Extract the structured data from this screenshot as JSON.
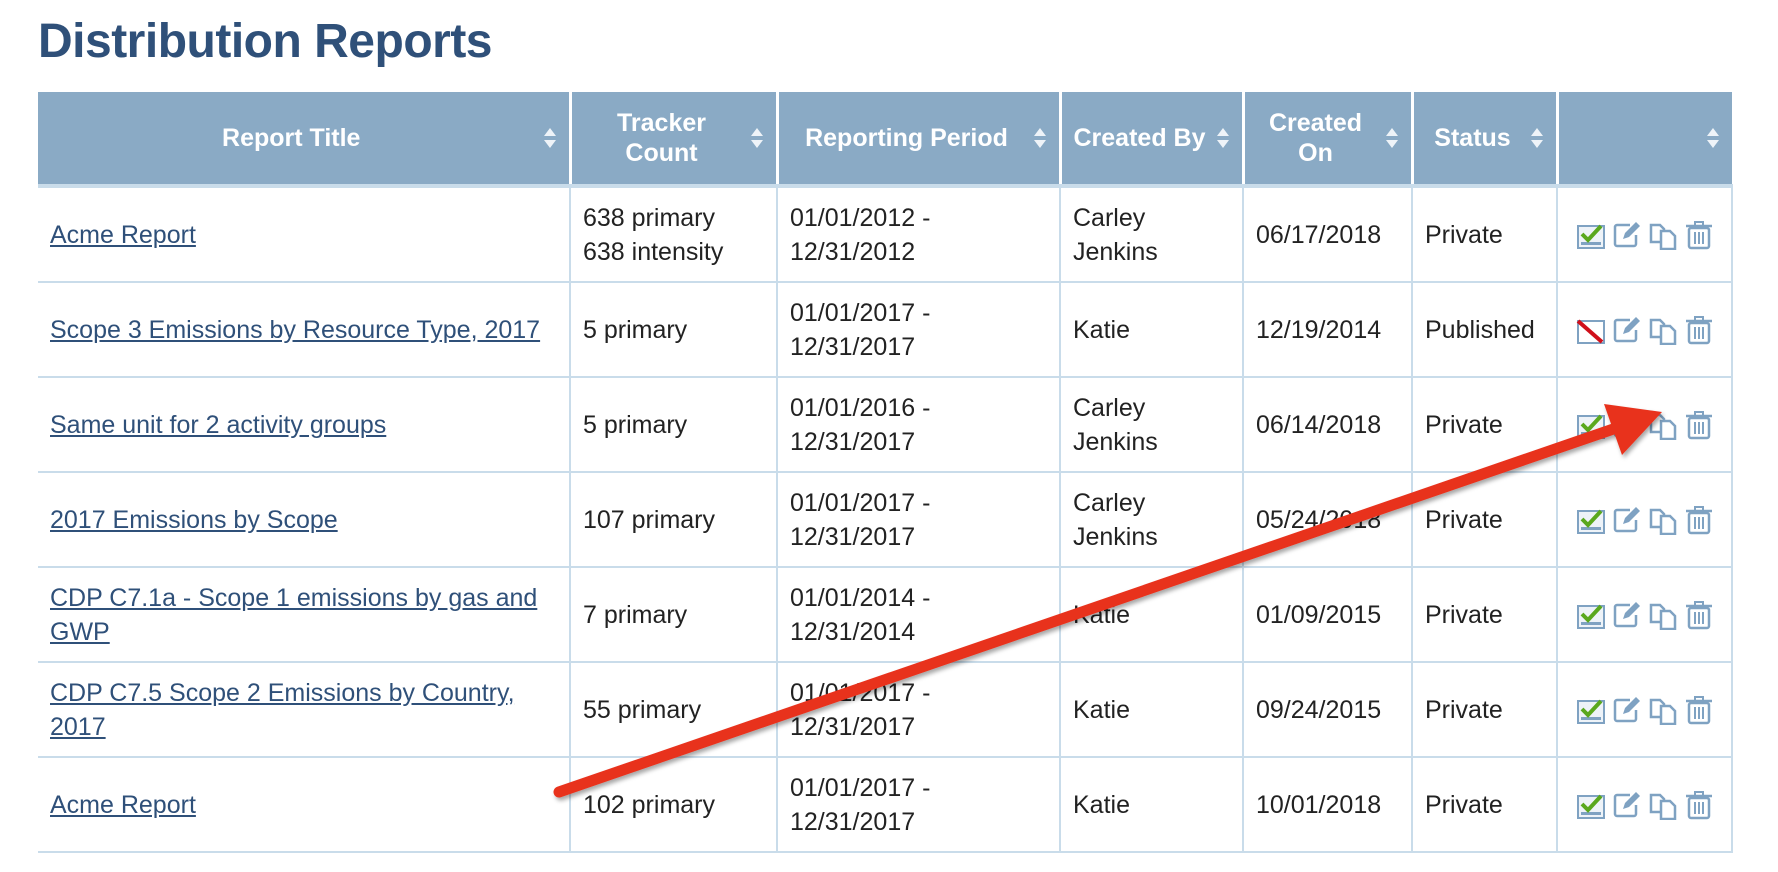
{
  "page": {
    "title": "Distribution Reports"
  },
  "colors": {
    "header_bg": "#8aaac5",
    "title": "#2f5079",
    "annotation_arrow": "#e8321e"
  },
  "table": {
    "columns": [
      "Report Title",
      "Tracker Count",
      "Reporting Period",
      "Created By",
      "Created On",
      "Status",
      ""
    ],
    "rows": [
      {
        "title": "Acme Report",
        "tracker": [
          "638 primary",
          "638 intensity"
        ],
        "period": [
          "01/01/2012 -",
          "12/31/2012"
        ],
        "created_by": "Carley Jenkins",
        "created_on": "06/17/2018",
        "status": "Private",
        "publish_icon": "checked"
      },
      {
        "title": "Scope 3 Emissions by Resource Type, 2017",
        "tracker": [
          "5 primary",
          ""
        ],
        "period": [
          "01/01/2017 -",
          "12/31/2017"
        ],
        "created_by": "Katie",
        "created_on": "12/19/2014",
        "status": "Published",
        "publish_icon": "unpublish"
      },
      {
        "title": "Same unit for 2 activity groups",
        "tracker": [
          "5 primary",
          ""
        ],
        "period": [
          "01/01/2016 -",
          "12/31/2017"
        ],
        "created_by": "Carley Jenkins",
        "created_on": "06/14/2018",
        "status": "Private",
        "publish_icon": "checked"
      },
      {
        "title": "2017 Emissions by Scope",
        "tracker": [
          "107 primary",
          ""
        ],
        "period": [
          "01/01/2017 -",
          "12/31/2017"
        ],
        "created_by": "Carley Jenkins",
        "created_on": "05/24/2018",
        "status": "Private",
        "publish_icon": "checked"
      },
      {
        "title": "CDP C7.1a - Scope 1 emissions by gas and GWP",
        "tracker": [
          "7 primary",
          ""
        ],
        "period": [
          "01/01/2014 -",
          "12/31/2014"
        ],
        "created_by": "Katie",
        "created_on": "01/09/2015",
        "status": "Private",
        "publish_icon": "checked"
      },
      {
        "title": "CDP C7.5 Scope 2 Emissions by Country, 2017",
        "tracker": [
          "55 primary",
          ""
        ],
        "period": [
          "01/01/2017 -",
          "12/31/2017"
        ],
        "created_by": "Katie",
        "created_on": "09/24/2015",
        "status": "Private",
        "publish_icon": "checked"
      },
      {
        "title": "Acme Report",
        "tracker": [
          "102 primary",
          ""
        ],
        "period": [
          "01/01/2017 -",
          "12/31/2017"
        ],
        "created_by": "Katie",
        "created_on": "10/01/2018",
        "status": "Private",
        "publish_icon": "checked"
      }
    ]
  }
}
